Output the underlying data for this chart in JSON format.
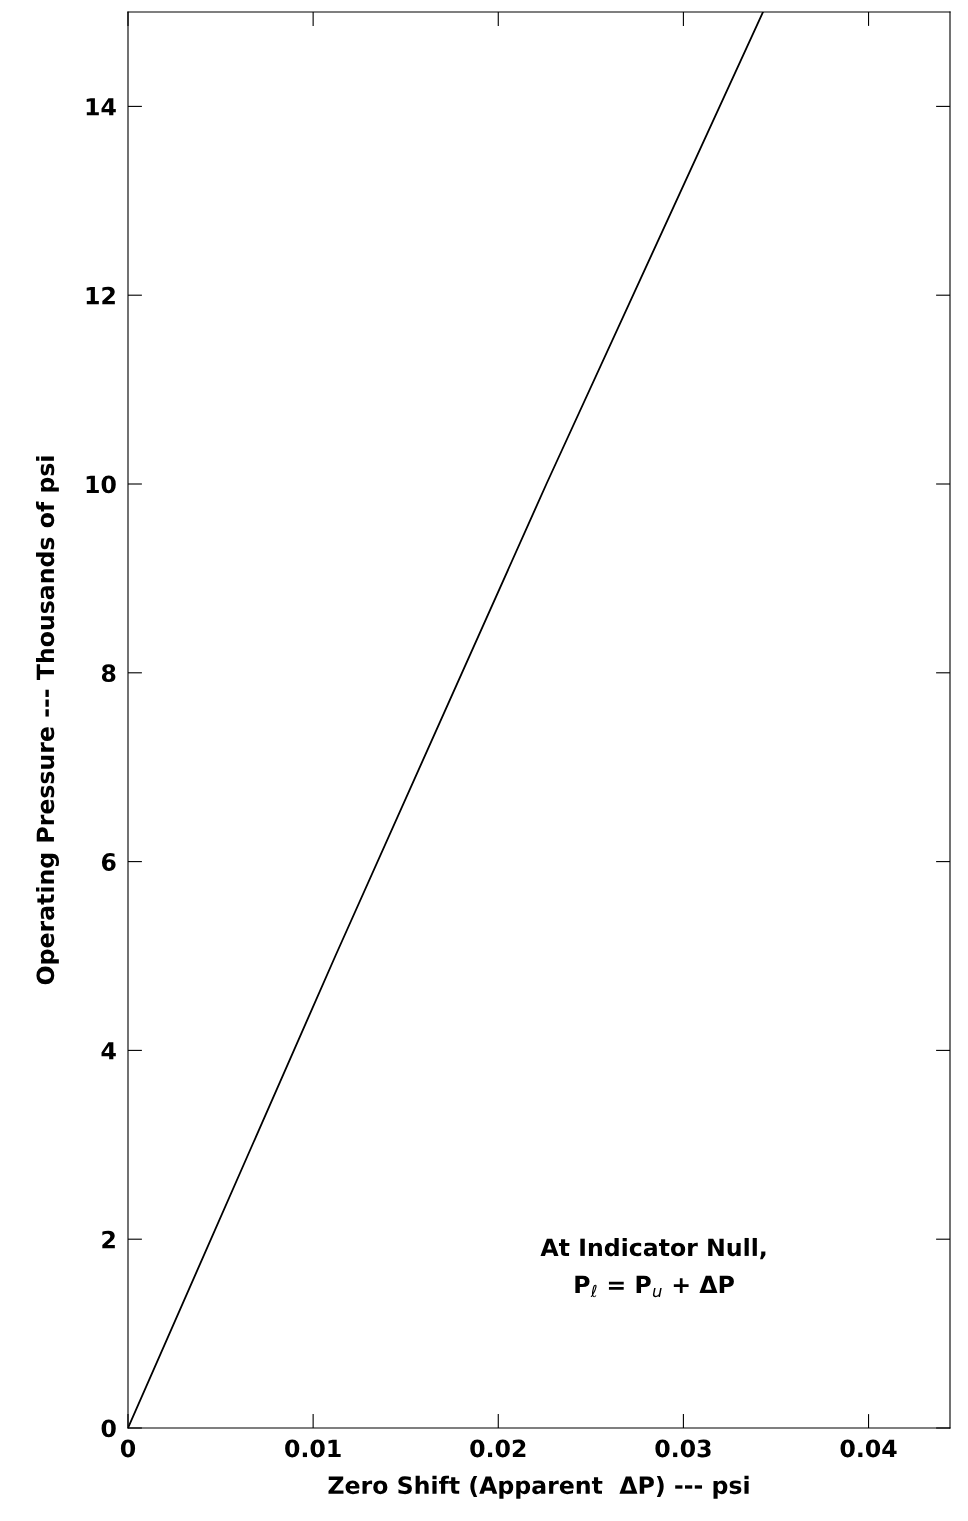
{
  "chart_data": {
    "type": "line",
    "xlabel": "Zero Shift (Apparent  ΔP) --- psi",
    "ylabel": "Operating Pressure --- Thousands of psi",
    "x": [
      0,
      0.0112,
      0.0226,
      0.0343
    ],
    "series": [
      {
        "color": "#000000",
        "values": [
          0,
          5,
          10,
          15
        ]
      }
    ],
    "xlim": [
      0,
      0.0444
    ],
    "xticks": [
      0,
      0.01,
      0.02,
      0.03,
      0.04
    ],
    "ylim": [
      0,
      15
    ],
    "yticks": [
      0,
      2,
      4,
      6,
      8,
      10,
      12,
      14
    ],
    "grid": false,
    "marker": "none",
    "line_style": "solid",
    "annotations": [
      "At Indicator Null,\nP$_{ℓ}$ = P$_{u}$ + ΔP"
    ]
  }
}
